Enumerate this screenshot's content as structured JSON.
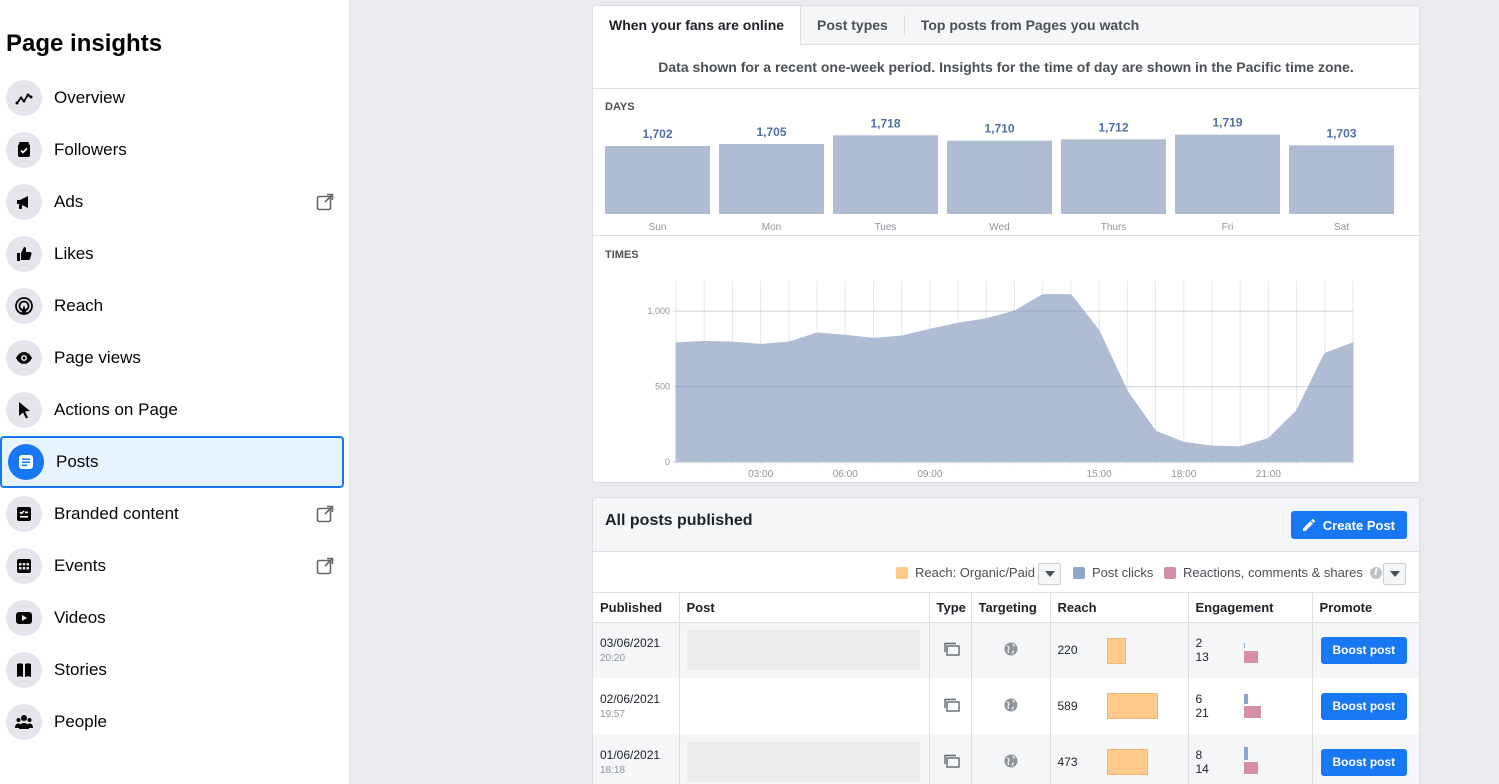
{
  "sidebar": {
    "title": "Page insights",
    "items": [
      {
        "label": "Overview",
        "icon": "overview-icon",
        "external": false
      },
      {
        "label": "Followers",
        "icon": "followers-icon",
        "external": false
      },
      {
        "label": "Ads",
        "icon": "megaphone-icon",
        "external": true
      },
      {
        "label": "Likes",
        "icon": "thumbs-up-icon",
        "external": false
      },
      {
        "label": "Reach",
        "icon": "broadcast-icon",
        "external": false
      },
      {
        "label": "Page views",
        "icon": "eye-icon",
        "external": false
      },
      {
        "label": "Actions on Page",
        "icon": "cursor-icon",
        "external": false
      },
      {
        "label": "Posts",
        "icon": "posts-icon",
        "external": false,
        "active": true
      },
      {
        "label": "Branded content",
        "icon": "branded-content-icon",
        "external": true
      },
      {
        "label": "Events",
        "icon": "calendar-icon",
        "external": true
      },
      {
        "label": "Videos",
        "icon": "video-icon",
        "external": false
      },
      {
        "label": "Stories",
        "icon": "book-icon",
        "external": false
      },
      {
        "label": "People",
        "icon": "people-icon",
        "external": false
      }
    ]
  },
  "tabs": [
    "When your fans are online",
    "Post types",
    "Top posts from Pages you watch"
  ],
  "notice": "Data shown for a recent one-week period. Insights for the time of day are shown in the Pacific time zone.",
  "days_label": "DAYS",
  "times_label": "TIMES",
  "chart_data": [
    {
      "type": "bar",
      "categories": [
        "Sun",
        "Mon",
        "Tues",
        "Wed",
        "Thurs",
        "Fri",
        "Sat"
      ],
      "values": [
        1702,
        1705,
        1718,
        1710,
        1712,
        1719,
        1703
      ],
      "value_labels": [
        "1,702",
        "1,705",
        "1,718",
        "1,710",
        "1,712",
        "1,719",
        "1,703"
      ],
      "bar_color": "#aebcd4",
      "label_color": "#4f6ea3"
    },
    {
      "type": "area",
      "x": [
        0,
        1,
        2,
        3,
        4,
        5,
        6,
        7,
        8,
        9,
        10,
        11,
        12,
        13,
        14,
        15,
        16,
        17,
        18,
        19,
        20,
        21,
        22,
        23,
        24
      ],
      "values": [
        790,
        800,
        795,
        780,
        795,
        855,
        840,
        820,
        835,
        880,
        920,
        950,
        1000,
        1110,
        1110,
        870,
        470,
        205,
        130,
        105,
        100,
        155,
        340,
        720,
        790
      ],
      "ylim": [
        0,
        1200
      ],
      "yticks": [
        0,
        500,
        1000
      ],
      "ytick_labels": [
        "0",
        "500",
        "1,000"
      ],
      "xtick_labels": [
        {
          "x": 3,
          "label": "03:00"
        },
        {
          "x": 6,
          "label": "06:00"
        },
        {
          "x": 9,
          "label": "09:00"
        },
        {
          "x": 15,
          "label": "15:00"
        },
        {
          "x": 18,
          "label": "18:00"
        },
        {
          "x": 21,
          "label": "21:00"
        }
      ],
      "fill_color": "#aebcd4",
      "grid": true
    }
  ],
  "posts": {
    "title": "All posts published",
    "create_label": "Create Post",
    "legend": {
      "reach": "Reach: Organic/Paid",
      "clicks": "Post clicks",
      "reactions": "Reactions, comments & shares",
      "colors": {
        "reach": "#fdca8b",
        "clicks": "#8fa6cc",
        "reactions": "#d68fa3"
      }
    },
    "columns": [
      "Published",
      "Post",
      "Type",
      "Targeting",
      "Reach",
      "Engagement",
      "Promote"
    ],
    "rows": [
      {
        "date": "03/06/2021",
        "time": "20:20",
        "has_thumb": true,
        "reach": "220",
        "reach_fraction": 0.37,
        "clicks": "2",
        "reactions": "13",
        "boost": "Boost post"
      },
      {
        "date": "02/06/2021",
        "time": "19:57",
        "has_thumb": false,
        "reach": "589",
        "reach_fraction": 1.0,
        "clicks": "6",
        "reactions": "21",
        "boost": "Boost post"
      },
      {
        "date": "01/06/2021",
        "time": "18:18",
        "has_thumb": true,
        "reach": "473",
        "reach_fraction": 0.8,
        "clicks": "8",
        "reactions": "14",
        "boost": "Boost post"
      }
    ]
  }
}
